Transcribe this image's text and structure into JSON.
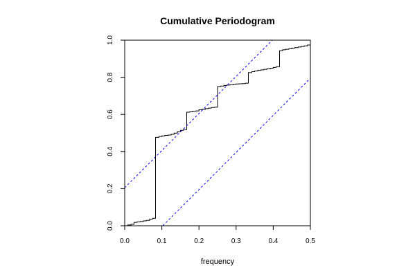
{
  "chart_data": {
    "type": "line",
    "title": "Cumulative Periodogram",
    "xlabel": "frequency",
    "ylabel": "",
    "xlim": [
      0,
      0.5
    ],
    "ylim": [
      0,
      1
    ],
    "x_ticks": [
      "0.0",
      "0.1",
      "0.2",
      "0.3",
      "0.4",
      "0.5"
    ],
    "y_ticks": [
      "0.0",
      "0.2",
      "0.4",
      "0.6",
      "0.8",
      "1.0"
    ],
    "grid": false,
    "series": [
      {
        "style": "step",
        "color": "#000000",
        "x": [
          0.0,
          0.008,
          0.017,
          0.025,
          0.033,
          0.042,
          0.05,
          0.058,
          0.067,
          0.075,
          0.083,
          0.092,
          0.1,
          0.108,
          0.117,
          0.125,
          0.133,
          0.142,
          0.15,
          0.158,
          0.167,
          0.175,
          0.183,
          0.192,
          0.2,
          0.208,
          0.217,
          0.225,
          0.233,
          0.242,
          0.25,
          0.258,
          0.267,
          0.275,
          0.283,
          0.292,
          0.3,
          0.308,
          0.317,
          0.325,
          0.333,
          0.342,
          0.35,
          0.358,
          0.367,
          0.375,
          0.383,
          0.392,
          0.4,
          0.408,
          0.417,
          0.425,
          0.433,
          0.442,
          0.45,
          0.458,
          0.467,
          0.475,
          0.483,
          0.492,
          0.5
        ],
        "y": [
          0.0,
          0.004,
          0.008,
          0.018,
          0.021,
          0.023,
          0.026,
          0.029,
          0.036,
          0.04,
          0.476,
          0.481,
          0.484,
          0.487,
          0.489,
          0.493,
          0.499,
          0.507,
          0.514,
          0.518,
          0.612,
          0.614,
          0.617,
          0.619,
          0.625,
          0.627,
          0.631,
          0.634,
          0.637,
          0.639,
          0.75,
          0.753,
          0.756,
          0.758,
          0.76,
          0.762,
          0.764,
          0.765,
          0.766,
          0.768,
          0.825,
          0.83,
          0.834,
          0.837,
          0.84,
          0.843,
          0.846,
          0.849,
          0.853,
          0.857,
          0.943,
          0.948,
          0.951,
          0.954,
          0.957,
          0.96,
          0.963,
          0.966,
          0.969,
          0.974,
          1.0
        ]
      },
      {
        "style": "dashed",
        "color": "#0000ff",
        "x": [
          0.0,
          0.5
        ],
        "y": [
          0.205,
          1.205
        ]
      },
      {
        "style": "dashed",
        "color": "#0000ff",
        "x": [
          0.0,
          0.5
        ],
        "y": [
          -0.205,
          0.795
        ]
      }
    ]
  }
}
